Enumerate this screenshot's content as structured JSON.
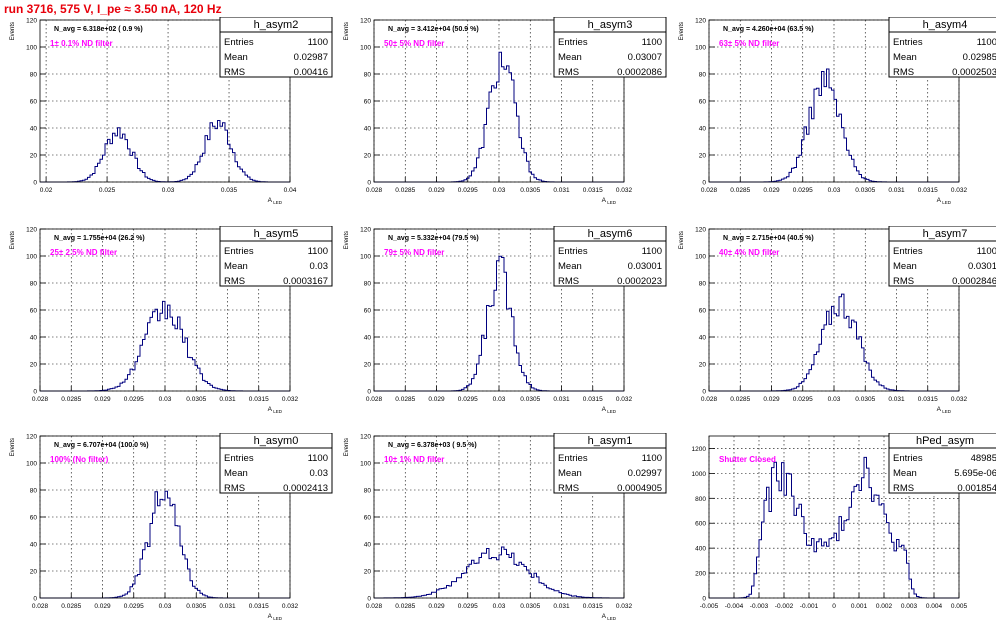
{
  "run_title": "run 3716,   575 V, I_pe ≈ 3.50 nA, 120 Hz",
  "colors": {
    "histogram": "#00007f",
    "annotation": "#ff00ff",
    "title": "#e8000b",
    "grid": "#000000"
  },
  "labels": {
    "y_axis": "Events",
    "x_axis": "A_LED",
    "entries": "Entries",
    "mean": "Mean",
    "rms": "RMS"
  },
  "chart_data": [
    {
      "type": "bar",
      "name": "h_asym2",
      "header": "N_avg = 6.318e+02 ( 0.9 %)",
      "annotation": "1± 0.1% ND filter",
      "xlabel": "A_LED",
      "ylabel": "Events",
      "entries": "1100",
      "mean": "0.02987",
      "rms": "0.00416",
      "xlim": [
        0.0195,
        0.04
      ],
      "ylim": [
        0,
        120
      ],
      "xticks": [
        0.02,
        0.025,
        0.03,
        0.035,
        0.04
      ],
      "xticklabels": [
        "0.02",
        "0.025",
        "0.03",
        "0.035",
        "0.04"
      ],
      "yticks": [
        0,
        20,
        40,
        60,
        80,
        100,
        120
      ],
      "yticklabels": [
        "0",
        "20",
        "40",
        "60",
        "80",
        "100",
        "120"
      ],
      "peaks": [
        [
          0.0259,
          0.0011,
          38
        ],
        [
          0.0341,
          0.0011,
          44
        ]
      ]
    },
    {
      "type": "bar",
      "name": "h_asym3",
      "header": "N_avg = 3.412e+04 (50.9 %)",
      "annotation": "50± 5% ND filter",
      "xlabel": "A_LED",
      "ylabel": "Events",
      "entries": "1100",
      "mean": "0.03007",
      "rms": "0.0002086",
      "xlim": [
        0.028,
        0.032
      ],
      "ylim": [
        0,
        120
      ],
      "xticks": [
        0.028,
        0.0285,
        0.029,
        0.0295,
        0.03,
        0.0305,
        0.031,
        0.0315,
        0.032
      ],
      "xticklabels": [
        "0.028",
        "0.0285",
        "0.029",
        "0.0295",
        "0.03",
        "0.0305",
        "0.031",
        "0.0315",
        "0.032"
      ],
      "yticks": [
        0,
        20,
        40,
        60,
        80,
        100,
        120
      ],
      "yticklabels": [
        "0",
        "20",
        "40",
        "60",
        "80",
        "100",
        "120"
      ],
      "peaks": [
        [
          0.03005,
          0.00021,
          90
        ]
      ]
    },
    {
      "type": "bar",
      "name": "h_asym4",
      "header": "N_avg = 4.260e+04 (63.5 %)",
      "annotation": "63± 5% ND filter",
      "xlabel": "A_LED",
      "ylabel": "Events",
      "entries": "1100",
      "mean": "0.02985",
      "rms": "0.0002503",
      "xlim": [
        0.028,
        0.032
      ],
      "ylim": [
        0,
        120
      ],
      "xticks": [
        0.028,
        0.0285,
        0.029,
        0.0295,
        0.03,
        0.0305,
        0.031,
        0.0315,
        0.032
      ],
      "xticklabels": [
        "0.028",
        "0.0285",
        "0.029",
        "0.0295",
        "0.03",
        "0.0305",
        "0.031",
        "0.0315",
        "0.032"
      ],
      "yticks": [
        0,
        20,
        40,
        60,
        80,
        100,
        120
      ],
      "yticklabels": [
        "0",
        "20",
        "40",
        "60",
        "80",
        "100",
        "120"
      ],
      "peaks": [
        [
          0.02985,
          0.00025,
          75
        ]
      ]
    },
    {
      "type": "bar",
      "name": "h_asym5",
      "header": "N_avg = 1.755e+04 (26.2 %)",
      "annotation": "25± 2.5% ND filter",
      "xlabel": "A_LED",
      "ylabel": "Events",
      "entries": "1100",
      "mean": "0.03",
      "rms": "0.0003167",
      "xlim": [
        0.028,
        0.032
      ],
      "ylim": [
        0,
        120
      ],
      "xticks": [
        0.028,
        0.0285,
        0.029,
        0.0295,
        0.03,
        0.0305,
        0.031,
        0.0315,
        0.032
      ],
      "xticklabels": [
        "0.028",
        "0.0285",
        "0.029",
        "0.0295",
        "0.03",
        "0.0305",
        "0.031",
        "0.0315",
        "0.032"
      ],
      "yticks": [
        0,
        20,
        40,
        60,
        80,
        100,
        120
      ],
      "yticklabels": [
        "0",
        "20",
        "40",
        "60",
        "80",
        "100",
        "120"
      ],
      "peaks": [
        [
          0.03,
          0.00032,
          60
        ]
      ]
    },
    {
      "type": "bar",
      "name": "h_asym6",
      "header": "N_avg = 5.332e+04 (79.5 %)",
      "annotation": "79± 5% ND filter",
      "xlabel": "A_LED",
      "ylabel": "Events",
      "entries": "1100",
      "mean": "0.03001",
      "rms": "0.0002023",
      "xlim": [
        0.028,
        0.032
      ],
      "ylim": [
        0,
        120
      ],
      "xticks": [
        0.028,
        0.0285,
        0.029,
        0.0295,
        0.03,
        0.0305,
        0.031,
        0.0315,
        0.032
      ],
      "xticklabels": [
        "0.028",
        "0.0285",
        "0.029",
        "0.0295",
        "0.03",
        "0.0305",
        "0.031",
        "0.0315",
        "0.032"
      ],
      "yticks": [
        0,
        20,
        40,
        60,
        80,
        100,
        120
      ],
      "yticklabels": [
        "0",
        "20",
        "40",
        "60",
        "80",
        "100",
        "120"
      ],
      "peaks": [
        [
          0.03001,
          0.0002,
          88
        ]
      ]
    },
    {
      "type": "bar",
      "name": "h_asym7",
      "header": "N_avg = 2.715e+04 (40.5 %)",
      "annotation": "40± 4% ND filter",
      "xlabel": "A_LED",
      "ylabel": "Events",
      "entries": "1100",
      "mean": "0.0301",
      "rms": "0.0002846",
      "xlim": [
        0.028,
        0.032
      ],
      "ylim": [
        0,
        120
      ],
      "xticks": [
        0.028,
        0.0285,
        0.029,
        0.0295,
        0.03,
        0.0305,
        0.031,
        0.0315,
        0.032
      ],
      "xticklabels": [
        "0.028",
        "0.0285",
        "0.029",
        "0.0295",
        "0.03",
        "0.0305",
        "0.031",
        "0.0315",
        "0.032"
      ],
      "yticks": [
        0,
        20,
        40,
        60,
        80,
        100,
        120
      ],
      "yticklabels": [
        "0",
        "20",
        "40",
        "60",
        "80",
        "100",
        "120"
      ],
      "peaks": [
        [
          0.0301,
          0.00028,
          66
        ]
      ]
    },
    {
      "type": "bar",
      "name": "h_asym0",
      "header": "N_avg = 6.707e+04 (100.0 %)",
      "annotation": "100% (No filter)",
      "xlabel": "A_LED",
      "ylabel": "Events",
      "entries": "1100",
      "mean": "0.03",
      "rms": "0.0002413",
      "xlim": [
        0.028,
        0.032
      ],
      "ylim": [
        0,
        120
      ],
      "xticks": [
        0.028,
        0.0285,
        0.029,
        0.0295,
        0.03,
        0.0305,
        0.031,
        0.0315,
        0.032
      ],
      "xticklabels": [
        "0.028",
        "0.0285",
        "0.029",
        "0.0295",
        "0.03",
        "0.0305",
        "0.031",
        "0.0315",
        "0.032"
      ],
      "yticks": [
        0,
        20,
        40,
        60,
        80,
        100,
        120
      ],
      "yticklabels": [
        "0",
        "20",
        "40",
        "60",
        "80",
        "100",
        "120"
      ],
      "peaks": [
        [
          0.02998,
          0.00024,
          76
        ]
      ]
    },
    {
      "type": "bar",
      "name": "h_asym1",
      "header": "N_avg = 6.378e+03 ( 9.5 %)",
      "annotation": "10± 1% ND filter",
      "xlabel": "A_LED",
      "ylabel": "Events",
      "entries": "1100",
      "mean": "0.02997",
      "rms": "0.0004905",
      "xlim": [
        0.028,
        0.032
      ],
      "ylim": [
        0,
        120
      ],
      "xticks": [
        0.028,
        0.0285,
        0.029,
        0.0295,
        0.03,
        0.0305,
        0.031,
        0.0315,
        0.032
      ],
      "xticklabels": [
        "0.028",
        "0.0285",
        "0.029",
        "0.0295",
        "0.03",
        "0.0305",
        "0.031",
        "0.0315",
        "0.032"
      ],
      "yticks": [
        0,
        20,
        40,
        60,
        80,
        100,
        120
      ],
      "yticklabels": [
        "0",
        "20",
        "40",
        "60",
        "80",
        "100",
        "120"
      ],
      "peaks": [
        [
          0.02997,
          0.00049,
          34
        ]
      ]
    },
    {
      "type": "bar",
      "name": "hPed_asym",
      "header": "",
      "annotation": "Shutter Closed",
      "xlabel": "",
      "ylabel": "",
      "entries": "48985",
      "mean": "5.695e-06",
      "rms": "0.001854",
      "xlim": [
        -0.005,
        0.005
      ],
      "ylim": [
        0,
        1300
      ],
      "xticks": [
        -0.005,
        -0.004,
        -0.003,
        -0.002,
        -0.001,
        0,
        0.001,
        0.002,
        0.003,
        0.004,
        0.005
      ],
      "xticklabels": [
        "-0.005",
        "-0.004",
        "-0.003",
        "-0.002",
        "-0.001",
        "0",
        "0.001",
        "0.002",
        "0.003",
        "0.004",
        "0.005"
      ],
      "yticks": [
        0,
        200,
        400,
        600,
        800,
        1000,
        1200
      ],
      "yticklabels": [
        "0",
        "200",
        "400",
        "600",
        "800",
        "1000",
        "1200"
      ],
      "pedestal": true
    }
  ]
}
